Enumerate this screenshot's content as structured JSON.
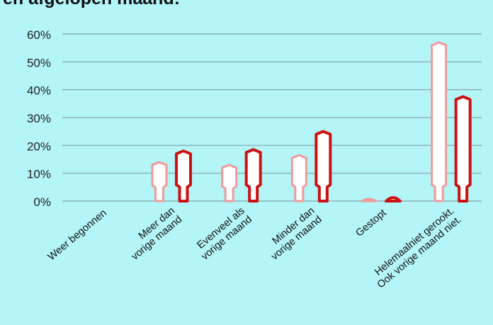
{
  "title_fragment": "en afgelopen maand:",
  "colors": {
    "background": "#b4f5f8",
    "gridline": "#8fb2b6",
    "series_light": "#f19a9a",
    "series_dark": "#cc1111",
    "fill": "#ffffff"
  },
  "chart_data": {
    "type": "bar",
    "title": "en afgelopen maand:",
    "xlabel": "",
    "ylabel": "",
    "ylim": [
      0,
      60
    ],
    "yticks": [
      0,
      10,
      20,
      30,
      40,
      50,
      60
    ],
    "ytick_labels": [
      "0%",
      "10%",
      "20%",
      "30%",
      "40%",
      "50%",
      "60%"
    ],
    "grid": true,
    "legend": "none",
    "categories": [
      [
        "Weer begonnen"
      ],
      [
        "Meer dan",
        "vorige maand"
      ],
      [
        "Evenveel als",
        "vorige maand"
      ],
      [
        "Minder dan",
        "vorige maand"
      ],
      [
        "Gestopt"
      ],
      [
        "Helemaalniet gerookt.",
        "Ook vorige maand niet."
      ]
    ],
    "series": [
      {
        "values": [
          0,
          14,
          13,
          16.5,
          1,
          57
        ]
      },
      {
        "values": [
          0,
          18,
          18.5,
          25,
          2,
          37.5
        ]
      }
    ]
  }
}
